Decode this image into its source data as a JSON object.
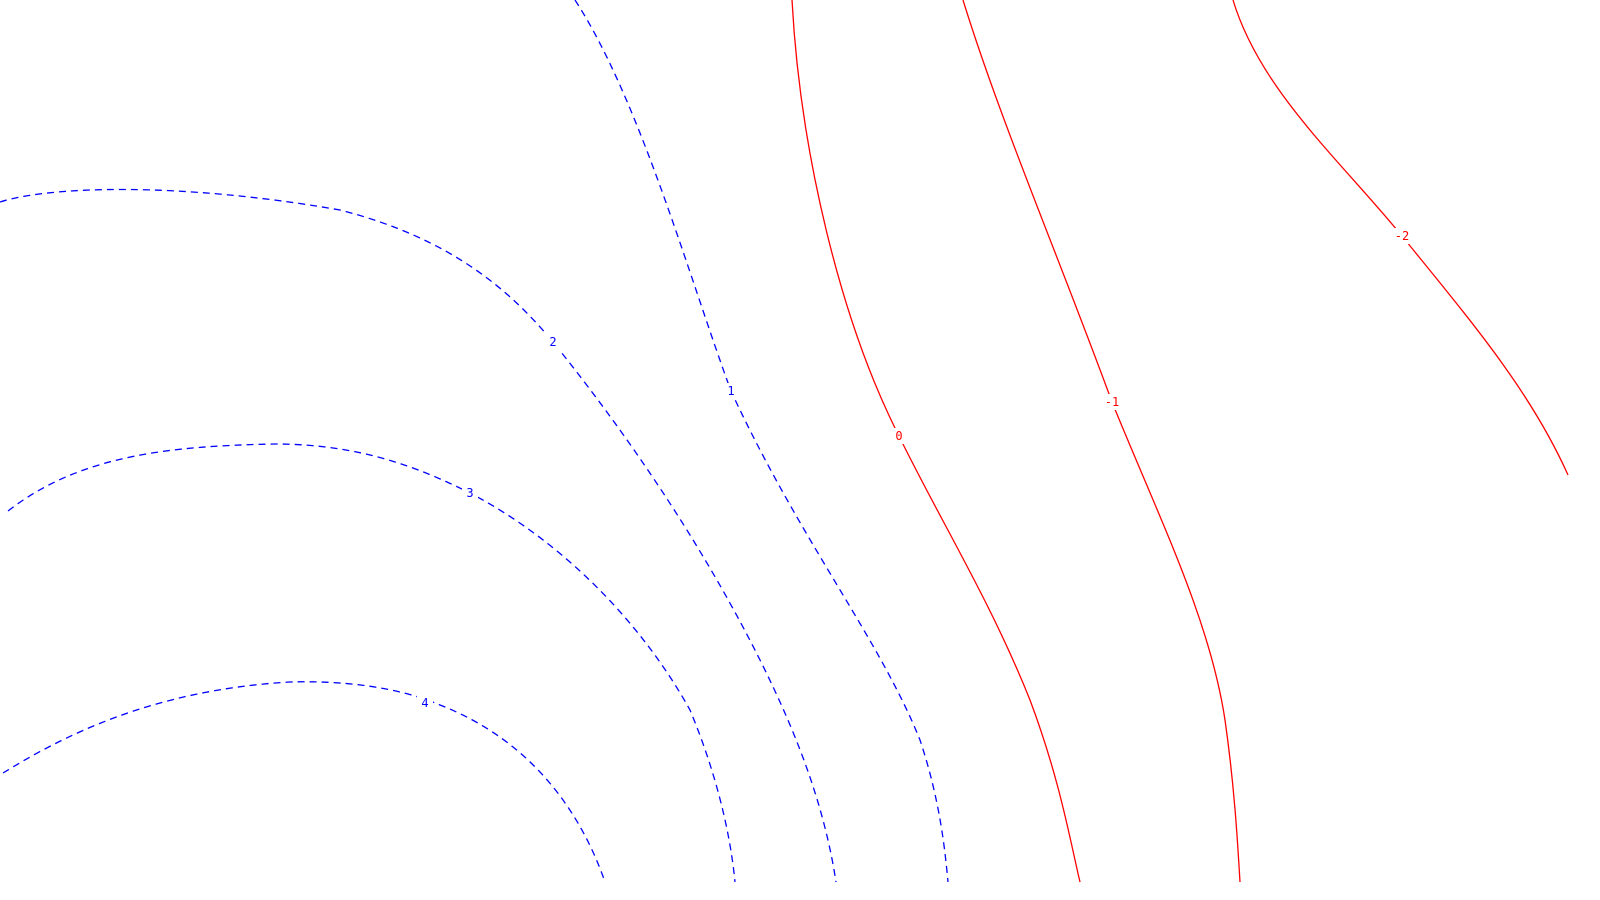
{
  "chart_data": {
    "type": "contour",
    "title": "",
    "xlabel": "",
    "ylabel": "",
    "colors": {
      "positive": "#0000ff",
      "negative": "#ff0000",
      "background": "#ffffff"
    },
    "line_styles": {
      "positive": "dashed",
      "negative": "solid"
    },
    "levels": [
      {
        "value": 4,
        "label": "4",
        "sign": "positive"
      },
      {
        "value": 3,
        "label": "3",
        "sign": "positive"
      },
      {
        "value": 2,
        "label": "2",
        "sign": "positive"
      },
      {
        "value": 1,
        "label": "1",
        "sign": "positive"
      },
      {
        "value": 0,
        "label": "0",
        "sign": "negative"
      },
      {
        "value": -1,
        "label": "-1",
        "sign": "negative"
      },
      {
        "value": -2,
        "label": "-2",
        "sign": "negative"
      }
    ]
  }
}
